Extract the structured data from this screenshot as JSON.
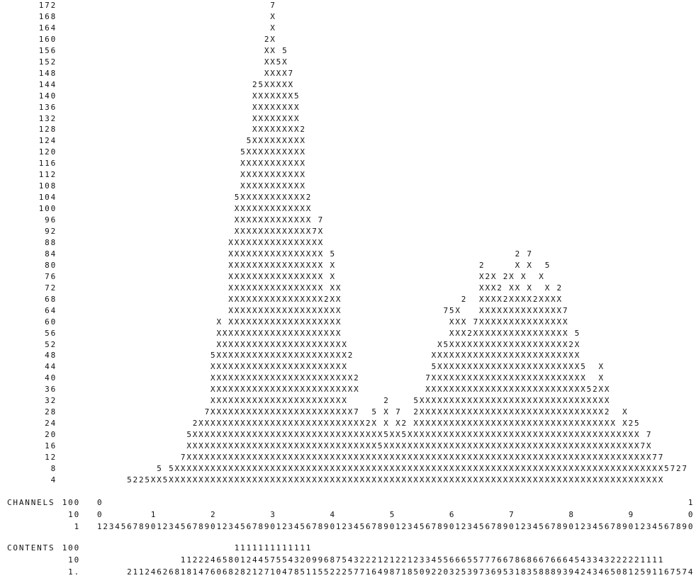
{
  "histogram": {
    "rows": [
      {
        "label": "172",
        "text": "                             7"
      },
      {
        "label": "168",
        "text": "                             X"
      },
      {
        "label": "164",
        "text": "                             X"
      },
      {
        "label": "160",
        "text": "                            2X"
      },
      {
        "label": "156",
        "text": "                            XX 5"
      },
      {
        "label": "152",
        "text": "                            XX5X"
      },
      {
        "label": "148",
        "text": "                            XXXX7"
      },
      {
        "label": "144",
        "text": "                          25XXXXX"
      },
      {
        "label": "140",
        "text": "                          XXXXXXX5"
      },
      {
        "label": "136",
        "text": "                          XXXXXXXX"
      },
      {
        "label": "132",
        "text": "                          XXXXXXXX"
      },
      {
        "label": "128",
        "text": "                          XXXXXXXX2"
      },
      {
        "label": "124",
        "text": "                         5XXXXXXXXX"
      },
      {
        "label": "120",
        "text": "                        5XXXXXXXXXX"
      },
      {
        "label": "116",
        "text": "                        XXXXXXXXXXX"
      },
      {
        "label": "112",
        "text": "                        XXXXXXXXXXX"
      },
      {
        "label": "108",
        "text": "                        XXXXXXXXXXX"
      },
      {
        "label": "104",
        "text": "                       5XXXXXXXXXXX2"
      },
      {
        "label": "100",
        "text": "                       XXXXXXXXXXXXX"
      },
      {
        "label": "96",
        "text": "                       XXXXXXXXXXXXX 7"
      },
      {
        "label": "92",
        "text": "                       XXXXXXXXXXXXX7X"
      },
      {
        "label": "88",
        "text": "                      XXXXXXXXXXXXXXXX"
      },
      {
        "label": "84",
        "text": "                      XXXXXXXXXXXXXXXX 5                              2 7"
      },
      {
        "label": "80",
        "text": "                      XXXXXXXXXXXXXXXX X                        2     X X  5"
      },
      {
        "label": "76",
        "text": "                      XXXXXXXXXXXXXXXX X                        X2X 2X X  X"
      },
      {
        "label": "72",
        "text": "                      XXXXXXXXXXXXXXXX XX                       XXX2 XX X  X 2"
      },
      {
        "label": "68",
        "text": "                      XXXXXXXXXXXXXXXX2XX                    2  XXXX2XXXX2XXXX"
      },
      {
        "label": "64",
        "text": "                      XXXXXXXXXXXXXXXXXXX                 75X   XXXXXXXXXXXXXX7"
      },
      {
        "label": "60",
        "text": "                    X XXXXXXXXXXXXXXXXXXX                  XXX 7XXXXXXXXXXXXXXX"
      },
      {
        "label": "56",
        "text": "                    XXXXXXXXXXXXXXXXXXXXX                  XXX2XXXXXXXXXXXXXXXX 5"
      },
      {
        "label": "52",
        "text": "                    XXXXXXXXXXXXXXXXXXXXXX               X5XXXXXXXXXXXXXXXXXXXX2X"
      },
      {
        "label": "48",
        "text": "                   5XXXXXXXXXXXXXXXXXXXXXX2             XXXXXXXXXXXXXXXXXXXXXXXXX"
      },
      {
        "label": "44",
        "text": "                   XXXXXXXXXXXXXXXXXXXXXXX              5XXXXXXXXXXXXXXXXXXXXXXXX5  X"
      },
      {
        "label": "40",
        "text": "                   XXXXXXXXXXXXXXXXXXXXXXXX2           7XXXXXXXXXXXXXXXXXXXXXXXXXX  X"
      },
      {
        "label": "36",
        "text": "                   XXXXXXXXXXXXXXXXXXXXXXXXX           XXXXXXXXXXXXXXXXXXXXXXXXXXX52XX"
      },
      {
        "label": "32",
        "text": "                   XXXXXXXXXXXXXXXXXXXXXXX      2    5XXXXXXXXXXXXXXXXXXXXXXXXXXXXXXXX"
      },
      {
        "label": "28",
        "text": "                  7XXXXXXXXXXXXXXXXXXXXXXXX7  5 X 7  2XXXXXXXXXXXXXXXXXXXXXXXXXXXXXXX2  X"
      },
      {
        "label": "24",
        "text": "                2XXXXXXXXXXXXXXXXXXXXXXXXXXXX2X X X2 XXXXXXXXXXXXXXXXXXXXXXXXXXXXXXXXXX X25"
      },
      {
        "label": "20",
        "text": "               5XXXXXXXXXXXXXXXXXXXXXXXXXXXXXXXX5XX5XXXXXXXXXXXXXXXXXXXXXXXXXXXXXXXXXXXXXXX 7"
      },
      {
        "label": "16",
        "text": "               XXXXXXXXXXXXXXXXXXXXXXXXXXXXXXXX5XXXXXXXXXXXXXXXXXXXXXXXXXXXXXXXXXXXXXXXXXXX7X"
      },
      {
        "label": "12",
        "text": "              7XXXXXXXXXXXXXXXXXXXXXXXXXXXXXXXXXXXXXXXXXXXXXXXXXXXXXXXXXXXXXXXXXXXXXXXXXXXXXX77"
      },
      {
        "label": "8",
        "text": "          5 5XXXXXXXXXXXXXXXXXXXXXXXXXXXXXXXXXXXXXXXXXXXXXXXXXXXXXXXXXXXXXXXXXXXXXXXXXXXXXXXXXX5727"
      },
      {
        "label": "4",
        "text": "     5225XX5XXXXXXXXXXXXXXXXXXXXXXXXXXXXXXXXXXXXXXXXXXXXXXXXXXXXXXXXXXXXXXXXXXXXXXXXXXXXXXXXXXX"
      }
    ]
  },
  "channels": {
    "title": "CHANNELS",
    "rows": [
      {
        "label": "100",
        "text": "0                                                                                                  1"
      },
      {
        "label": "10",
        "text": "0        1         2         3         4         5         6         7         8         9         0"
      },
      {
        "label": "1",
        "text": "1234567890123456789012345678901234567890123456789012345678901234567890123456789012345678901234567890"
      }
    ]
  },
  "contents": {
    "title": "CONTENTS",
    "rows": [
      {
        "label": "100",
        "text": "                       1111111111111"
      },
      {
        "label": "10",
        "text": "              112224658012445755432099687543222121221233455666557776678686676664543343222221111"
      },
      {
        "label": "1.",
        "text": "     21124626818147606828212710478511552225771649871850922032539736953183588893942434650812591167574"
      }
    ]
  }
}
